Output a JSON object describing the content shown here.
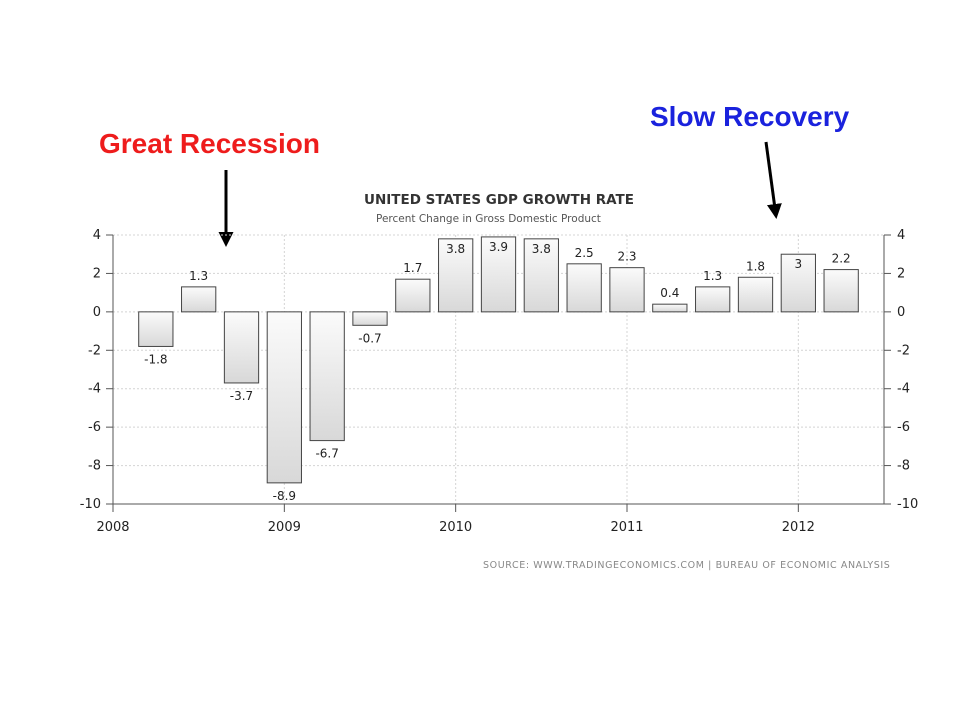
{
  "annotations": {
    "recession": {
      "text": "Great Recession",
      "color": "#ee1c1c"
    },
    "recovery": {
      "text": "Slow Recovery",
      "color": "#1a22dd"
    }
  },
  "chart_data": {
    "type": "bar",
    "title": "UNITED STATES GDP GROWTH RATE",
    "subtitle": "Percent Change in Gross Domestic Product",
    "source": "SOURCE: WWW.TRADINGECONOMICS.COM | BUREAU OF ECONOMIC ANALYSIS",
    "categories": [
      "2008 Q2",
      "2008 Q3",
      "2008 Q4",
      "2009 Q1",
      "2009 Q2",
      "2009 Q3",
      "2009 Q4",
      "2010 Q1",
      "2010 Q2",
      "2010 Q3",
      "2010 Q4",
      "2011 Q1",
      "2011 Q2",
      "2011 Q3",
      "2011 Q4",
      "2012 Q1",
      "2012 Q2"
    ],
    "values": [
      -1.8,
      1.3,
      -3.7,
      -8.9,
      -6.7,
      -0.7,
      1.7,
      3.8,
      3.9,
      3.8,
      2.5,
      2.3,
      0.4,
      1.3,
      1.8,
      3,
      2.2
    ],
    "value_labels": [
      "-1.8",
      "1.3",
      "-3.7",
      "-8.9",
      "-6.7",
      "-0.7",
      "1.7",
      "3.8",
      "3.9",
      "3.8",
      "2.5",
      "2.3",
      "0.4",
      "1.3",
      "1.8",
      "3",
      "2.2"
    ],
    "x_ticks": [
      "2008",
      "2009",
      "2010",
      "2011",
      "2012"
    ],
    "y_ticks": [
      4,
      2,
      0,
      -2,
      -4,
      -6,
      -8,
      -10
    ],
    "ylim": [
      -10,
      4
    ],
    "grid": true,
    "bar_color": "#e6e6e6",
    "bar_outline_color": "#444444"
  }
}
